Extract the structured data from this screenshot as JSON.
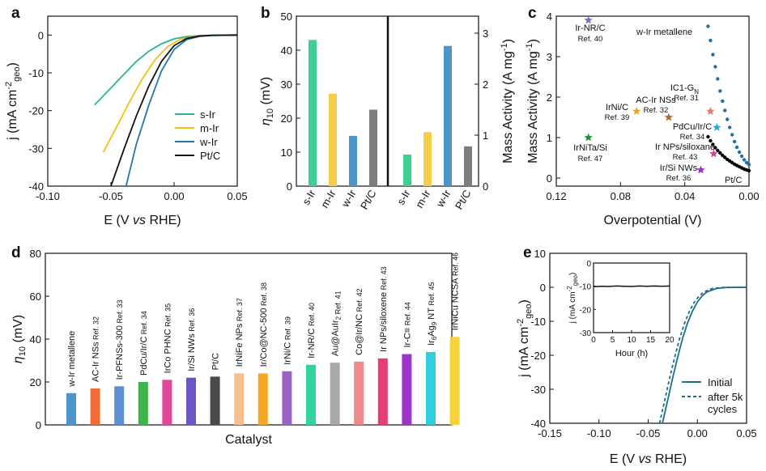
{
  "chart_data": [
    {
      "panel": "a",
      "type": "line",
      "xlabel_main": "E (V",
      "xlabel_italic": "vs",
      "xlabel_tail": "RHE)",
      "ylabel_main": "j (mA cm",
      "ylabel_sup": "-2",
      "ylabel_sub": "geo",
      "ylabel_tail": ")",
      "xlim": [
        -0.1,
        0.05
      ],
      "ylim": [
        -40,
        5
      ],
      "xticks": [
        -0.1,
        -0.05,
        0.0,
        0.05
      ],
      "xtick_labels": [
        "-0.10",
        "-0.05",
        "0.00",
        "0.05"
      ],
      "yticks": [
        -40,
        -30,
        -20,
        -10,
        0
      ],
      "ytick_labels": [
        "-40",
        "-30",
        "-20",
        "-10",
        "0"
      ],
      "legend": [
        "s-Ir",
        "m-Ir",
        "w-Ir",
        "Pt/C"
      ],
      "series": [
        {
          "name": "s-Ir",
          "color": "#2bb58a",
          "x": [
            -0.063,
            -0.05,
            -0.04,
            -0.03,
            -0.02,
            -0.01,
            0.0,
            0.01,
            0.02,
            0.03,
            0.05
          ],
          "y": [
            -18.5,
            -14.0,
            -10.5,
            -7.0,
            -4.3,
            -2.3,
            -1.0,
            -0.4,
            -0.15,
            -0.05,
            0.0
          ]
        },
        {
          "name": "m-Ir",
          "color": "#f2c20f",
          "x": [
            -0.056,
            -0.045,
            -0.035,
            -0.025,
            -0.015,
            -0.005,
            0.005,
            0.015,
            0.025,
            0.05
          ],
          "y": [
            -31.0,
            -24.0,
            -17.5,
            -11.5,
            -6.5,
            -3.0,
            -1.1,
            -0.4,
            -0.1,
            0.0
          ]
        },
        {
          "name": "w-Ir",
          "color": "#1f77b4",
          "x": [
            -0.038,
            -0.03,
            -0.02,
            -0.01,
            0.0,
            0.01,
            0.02,
            0.03,
            0.05
          ],
          "y": [
            -40.0,
            -29.0,
            -18.5,
            -9.5,
            -3.8,
            -1.2,
            -0.35,
            -0.1,
            0.0
          ]
        },
        {
          "name": "Pt/C",
          "color": "#111111",
          "x": [
            -0.05,
            -0.04,
            -0.03,
            -0.02,
            -0.01,
            0.0,
            0.01,
            0.02,
            0.03,
            0.05
          ],
          "y": [
            -40.0,
            -30.5,
            -21.5,
            -13.5,
            -7.0,
            -2.8,
            -0.9,
            -0.25,
            -0.06,
            0.0
          ]
        }
      ]
    },
    {
      "panel": "b",
      "type": "bar",
      "ylabel_left_sym": "η",
      "ylabel_left_sub": "10",
      "ylabel_left_tail": " (mV)",
      "ylabel_right_main": "Mass Activity (A mg",
      "ylabel_right_sup": "-1",
      "ylabel_right_tail": ")",
      "left_ylim": [
        0,
        50
      ],
      "left_yticks": [
        0,
        10,
        20,
        30,
        40,
        50
      ],
      "right_ylim": [
        0,
        3.333
      ],
      "right_yticks": [
        0,
        1,
        2,
        3
      ],
      "categories": [
        "s-Ir",
        "m-Ir",
        "w-Ir",
        "Pt/C"
      ],
      "colors": [
        "#3fcf93",
        "#f5cf4a",
        "#4d94c8",
        "#7d7d7d"
      ],
      "eta10_mV": [
        43,
        27.2,
        14.8,
        22.5
      ],
      "mass_activity": [
        0.62,
        1.06,
        2.75,
        0.78
      ]
    },
    {
      "panel": "c",
      "type": "scatter",
      "xlabel": "Overpotential (V)",
      "ylabel_main": "Mass Activity (A mg",
      "ylabel_sup": "-1",
      "ylabel_tail": ")",
      "xlim": [
        0.12,
        0.0
      ],
      "ylim": [
        -0.2,
        4.0
      ],
      "xticks": [
        0.12,
        0.08,
        0.04,
        0.0
      ],
      "xtick_labels": [
        "0.12",
        "0.08",
        "0.04",
        "0.00"
      ],
      "yticks": [
        0,
        1,
        2,
        3,
        4
      ],
      "curves": [
        {
          "name": "w-Ir metallene",
          "color": "#1f6fa8",
          "x": [
            0.0255,
            0.024,
            0.0225,
            0.021,
            0.0195,
            0.018,
            0.0165,
            0.015,
            0.0135,
            0.012,
            0.0105,
            0.009,
            0.0075,
            0.006,
            0.0045,
            0.003,
            0.0015,
            0.0
          ],
          "y": [
            3.75,
            3.4,
            3.05,
            2.75,
            2.45,
            2.15,
            1.9,
            1.67,
            1.45,
            1.25,
            1.07,
            0.9,
            0.76,
            0.64,
            0.54,
            0.45,
            0.38,
            0.33
          ]
        },
        {
          "name": "Pt/C",
          "color": "#000000",
          "x": [
            0.0255,
            0.024,
            0.0225,
            0.021,
            0.0195,
            0.018,
            0.0165,
            0.015,
            0.0135,
            0.012,
            0.0105,
            0.009,
            0.0075,
            0.006,
            0.0045,
            0.003,
            0.0015,
            0.0
          ],
          "y": [
            1.02,
            0.92,
            0.83,
            0.75,
            0.68,
            0.62,
            0.56,
            0.51,
            0.46,
            0.42,
            0.38,
            0.34,
            0.31,
            0.28,
            0.25,
            0.22,
            0.2,
            0.18
          ]
        }
      ],
      "curve_labels": [
        "w-Ir metallene",
        "Pt/C"
      ],
      "points": [
        {
          "label": "Ir-NR/C",
          "ref": "Ref. 40",
          "x": 0.1,
          "y": 3.9,
          "color": "#7b6fc0"
        },
        {
          "label": "IC1-G",
          "label_sub": "N",
          "ref": "Ref. 31",
          "x": 0.024,
          "y": 1.65,
          "color": "#e8756d"
        },
        {
          "label": "AC-Ir NSs",
          "ref": "Ref. 32",
          "x": 0.05,
          "y": 1.5,
          "color": "#b5651d"
        },
        {
          "label": "IrNi/C",
          "ref": "Ref. 39",
          "x": 0.07,
          "y": 1.65,
          "color": "#f2a31b"
        },
        {
          "label": "PdCu/Ir/C",
          "ref": "Ref. 34",
          "x": 0.02,
          "y": 1.25,
          "color": "#2aa9e0"
        },
        {
          "label": "Ir NPs/siloxane",
          "ref": "Ref. 43",
          "x": 0.022,
          "y": 0.6,
          "color": "#d63c9e"
        },
        {
          "label": "IrNiTa/Si",
          "ref": "Ref. 47",
          "x": 0.1,
          "y": 1.0,
          "color": "#1f8f3a"
        },
        {
          "label": "Ir/Si NWs",
          "ref": "Ref. 36",
          "x": 0.03,
          "y": 0.2,
          "color": "#9b2fbf"
        }
      ]
    },
    {
      "panel": "d",
      "type": "bar",
      "xlabel": "Catalyst",
      "ylabel_sym": "η",
      "ylabel_sub": "10",
      "ylabel_tail": " (mV)",
      "ylim": [
        0,
        80
      ],
      "yticks": [
        0,
        20,
        40,
        60,
        80
      ],
      "categories": [
        {
          "name": "w-Ir metallene",
          "ref": "",
          "value": 14.8,
          "color": "#4d94c8"
        },
        {
          "name": "AC-Ir NSs",
          "ref": "Ref. 32",
          "value": 17,
          "color": "#f06b35"
        },
        {
          "name": "Ir-PFNSs-300",
          "ref": "Ref. 33",
          "value": 18,
          "color": "#5b8fd6"
        },
        {
          "name": "PdCu/Ir/C",
          "ref": "Ref. 34",
          "value": 20,
          "color": "#3cb54a"
        },
        {
          "name": "IrCo PHNC",
          "ref": "Ref. 35",
          "value": 21,
          "color": "#e0479a"
        },
        {
          "name": "Ir/Si NWs",
          "ref": "Ref. 36",
          "value": 22,
          "color": "#6b55c7"
        },
        {
          "name": "Pt/C",
          "ref": "",
          "value": 22.5,
          "color": "#4a4a4a"
        },
        {
          "name": "IrNiFe NPs",
          "ref": "Ref. 37",
          "value": 24,
          "color": "#f8bf8e"
        },
        {
          "name": "Ir/Co@NC-500",
          "ref": "Ref. 38",
          "value": 24,
          "color": "#f5a826"
        },
        {
          "name": "IrNi/C",
          "ref": "Ref. 39",
          "value": 25,
          "color": "#9a62c4"
        },
        {
          "name": "Ir-NR/C",
          "ref": "Ref. 40",
          "value": 28,
          "color": "#2fd4a0"
        },
        {
          "name": "Au@AuIr",
          "name_sub": "2",
          "ref": "Ref. 41",
          "value": 29,
          "color": "#a8a8a8"
        },
        {
          "name": "Co@Ir/NC",
          "ref": "Ref. 42",
          "value": 29.5,
          "color": "#f08a8a"
        },
        {
          "name": "Ir NPs/siloxene",
          "ref": "Ref. 43",
          "value": 31,
          "color": "#e63c78"
        },
        {
          "name": "Ir-C≡",
          "ref": "Ref. 44",
          "value": 33,
          "color": "#9e35c9"
        },
        {
          "name": "Ir",
          "name_sub": "6",
          "name_mid": "Ag",
          "name_sub2": "9",
          "name_tail": " NT",
          "ref": "Ref. 45",
          "value": 34,
          "color": "#2fcfe0"
        },
        {
          "name": "IrNiCu NCSA",
          "ref": "Ref. 46",
          "value": 41,
          "color": "#f5d23a"
        }
      ]
    },
    {
      "panel": "e",
      "type": "line",
      "xlabel_main": "E (V",
      "xlabel_italic": "vs",
      "xlabel_tail": "RHE)",
      "ylabel_main": "j (mA cm",
      "ylabel_sup": "-2",
      "ylabel_sub": "geo",
      "ylabel_tail": ")",
      "xlim": [
        -0.15,
        0.05
      ],
      "ylim": [
        -40,
        10
      ],
      "xticks": [
        -0.15,
        -0.1,
        -0.05,
        0.0,
        0.05
      ],
      "xtick_labels": [
        "-0.15",
        "-0.10",
        "-0.05",
        "0.00",
        "0.05"
      ],
      "yticks": [
        -40,
        -30,
        -20,
        -10,
        0,
        10
      ],
      "legend": [
        "Initial",
        "after 5k",
        "cycles"
      ],
      "series": [
        {
          "name": "Initial",
          "color": "#1a6e8e",
          "dashed": false,
          "x": [
            -0.0355,
            -0.03,
            -0.025,
            -0.02,
            -0.015,
            -0.01,
            -0.005,
            0.0,
            0.005,
            0.01,
            0.02,
            0.03,
            0.05
          ],
          "y": [
            -40.0,
            -33.0,
            -26.5,
            -20.5,
            -15.0,
            -10.5,
            -7.0,
            -4.3,
            -2.5,
            -1.3,
            -0.3,
            -0.05,
            0.0
          ]
        },
        {
          "name": "after 5k cycles",
          "color": "#1a6e8e",
          "dashed": true,
          "x": [
            -0.0385,
            -0.033,
            -0.028,
            -0.023,
            -0.018,
            -0.013,
            -0.008,
            -0.003,
            0.002,
            0.007,
            0.015,
            0.025,
            0.05
          ],
          "y": [
            -40.0,
            -33.0,
            -26.5,
            -20.5,
            -15.0,
            -10.5,
            -7.0,
            -4.3,
            -2.5,
            -1.3,
            -0.35,
            -0.05,
            0.0
          ]
        }
      ],
      "inset": {
        "xlabel": "Hour (h)",
        "ylabel_main": "j (mA cm",
        "ylabel_sup": "-2",
        "ylabel_sub": "geo",
        "ylabel_tail": ")",
        "xlim": [
          0,
          20
        ],
        "ylim": [
          -30,
          0
        ],
        "xticks": [
          0,
          5,
          10,
          15,
          20
        ],
        "yticks": [
          -30,
          -20,
          -10,
          0
        ],
        "x": [
          0,
          2,
          4,
          6,
          8,
          10,
          12,
          14,
          16,
          18,
          20
        ],
        "y": [
          -10.2,
          -10.0,
          -10.1,
          -9.9,
          -10.0,
          -10.1,
          -9.9,
          -10.0,
          -9.9,
          -10.0,
          -9.9
        ]
      }
    }
  ],
  "panel_labels": {
    "a": "a",
    "b": "b",
    "c": "c",
    "d": "d",
    "e": "e"
  }
}
